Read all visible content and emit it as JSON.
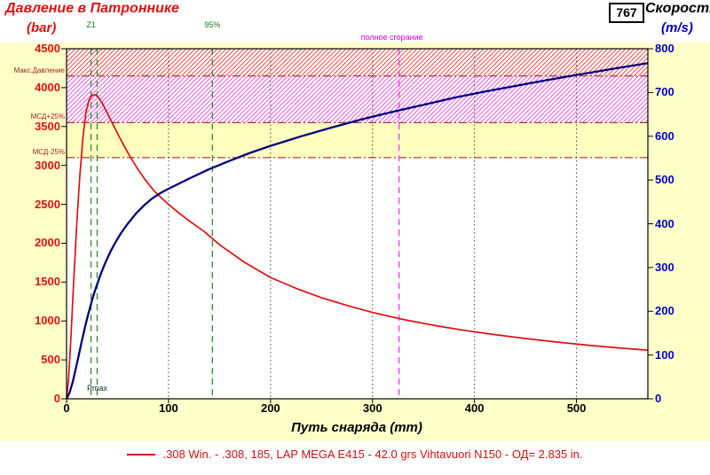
{
  "header": {
    "pressure_title": "Давление в Патроннике",
    "pressure_unit": "(bar)",
    "muzzle_velocity": "767",
    "velocity_title": "Скорость",
    "velocity_unit": "(m/s)"
  },
  "colors": {
    "pressure": "#dd1111",
    "velocity": "#000080",
    "left_axis_text": "#dd1111",
    "right_axis_text": "#0000cc",
    "margin_band": "#ffffc8",
    "optimal_band": "#ffffc0",
    "hatch_red": "#ee3333",
    "hatch_magenta": "#dd44dd",
    "limit_line": "#991111",
    "green_marker": "#2e8b2e",
    "magenta_marker": "#ff33ff",
    "grid": "#444444"
  },
  "x_axis": {
    "title": "Путь снаряда (mm)",
    "ticks": [
      0,
      100,
      200,
      300,
      400,
      500
    ],
    "min": 0,
    "max": 570
  },
  "left_axis": {
    "ticks": [
      4500,
      4000,
      3500,
      3000,
      2500,
      2000,
      1500,
      1000,
      500,
      0
    ],
    "min": 0,
    "max": 4500
  },
  "right_axis": {
    "ticks": [
      800,
      700,
      600,
      500,
      400,
      300,
      200,
      100,
      0
    ],
    "min": 0,
    "max": 800
  },
  "annotations": {
    "max_pressure": {
      "label": "Макс.Давление",
      "value": 4150
    },
    "msd_plus": {
      "label": "МСД+25%",
      "value": 3550
    },
    "msd_minus": {
      "label": "МСД-25%",
      "value": 3100
    },
    "z1": {
      "label": "Z1",
      "x": 24
    },
    "pmax": {
      "label": "Pmax",
      "x": 30
    },
    "burn95": {
      "label": "95%",
      "x": 143
    },
    "burn_full": {
      "label": "полное сгорание",
      "x": 326
    }
  },
  "legend": {
    "text": ".308 Win. - .308, 185, LAP MEGA E415 - 42.0 grs Vihtavuori N150 - ОД= 2.835 in."
  },
  "chart_data": {
    "type": "line",
    "title": "Давление в Патроннике / Скорость",
    "xlabel": "Путь снаряда (mm)",
    "x_range": [
      0,
      570
    ],
    "legend_position": "bottom",
    "series": [
      {
        "name": "Давление в Патроннике (bar)",
        "axis": "left",
        "ylim": [
          0,
          4500
        ],
        "color": "#dd1111",
        "points": [
          [
            0,
            0
          ],
          [
            2,
            260
          ],
          [
            4,
            720
          ],
          [
            7,
            1500
          ],
          [
            10,
            2250
          ],
          [
            13,
            2860
          ],
          [
            16,
            3350
          ],
          [
            19,
            3680
          ],
          [
            22,
            3840
          ],
          [
            25,
            3900
          ],
          [
            28,
            3910
          ],
          [
            31,
            3880
          ],
          [
            35,
            3800
          ],
          [
            40,
            3670
          ],
          [
            45,
            3540
          ],
          [
            50,
            3410
          ],
          [
            56,
            3260
          ],
          [
            62,
            3120
          ],
          [
            70,
            2950
          ],
          [
            78,
            2800
          ],
          [
            86,
            2670
          ],
          [
            94,
            2570
          ],
          [
            100,
            2500
          ],
          [
            110,
            2390
          ],
          [
            120,
            2290
          ],
          [
            135,
            2150
          ],
          [
            150,
            1980
          ],
          [
            175,
            1750
          ],
          [
            200,
            1560
          ],
          [
            225,
            1420
          ],
          [
            250,
            1300
          ],
          [
            275,
            1200
          ],
          [
            300,
            1110
          ],
          [
            330,
            1020
          ],
          [
            360,
            945
          ],
          [
            390,
            880
          ],
          [
            420,
            825
          ],
          [
            450,
            775
          ],
          [
            480,
            730
          ],
          [
            510,
            690
          ],
          [
            540,
            655
          ],
          [
            570,
            625
          ]
        ]
      },
      {
        "name": "Скорость (m/s)",
        "axis": "right",
        "ylim": [
          0,
          800
        ],
        "color": "#000080",
        "points": [
          [
            0,
            0
          ],
          [
            3,
            14
          ],
          [
            6,
            38
          ],
          [
            9,
            68
          ],
          [
            12,
            100
          ],
          [
            15,
            132
          ],
          [
            18,
            163
          ],
          [
            21,
            191
          ],
          [
            24,
            217
          ],
          [
            27,
            241
          ],
          [
            30,
            262
          ],
          [
            34,
            288
          ],
          [
            38,
            311
          ],
          [
            43,
            336
          ],
          [
            48,
            358
          ],
          [
            54,
            381
          ],
          [
            60,
            400
          ],
          [
            68,
            423
          ],
          [
            76,
            442
          ],
          [
            84,
            458
          ],
          [
            92,
            470
          ],
          [
            100,
            480
          ],
          [
            120,
            503
          ],
          [
            140,
            525
          ],
          [
            160,
            544
          ],
          [
            180,
            562
          ],
          [
            200,
            578
          ],
          [
            230,
            600
          ],
          [
            260,
            620
          ],
          [
            290,
            639
          ],
          [
            320,
            656
          ],
          [
            350,
            672
          ],
          [
            380,
            688
          ],
          [
            410,
            702
          ],
          [
            440,
            715
          ],
          [
            470,
            728
          ],
          [
            500,
            740
          ],
          [
            535,
            754
          ],
          [
            570,
            767
          ]
        ]
      }
    ]
  }
}
